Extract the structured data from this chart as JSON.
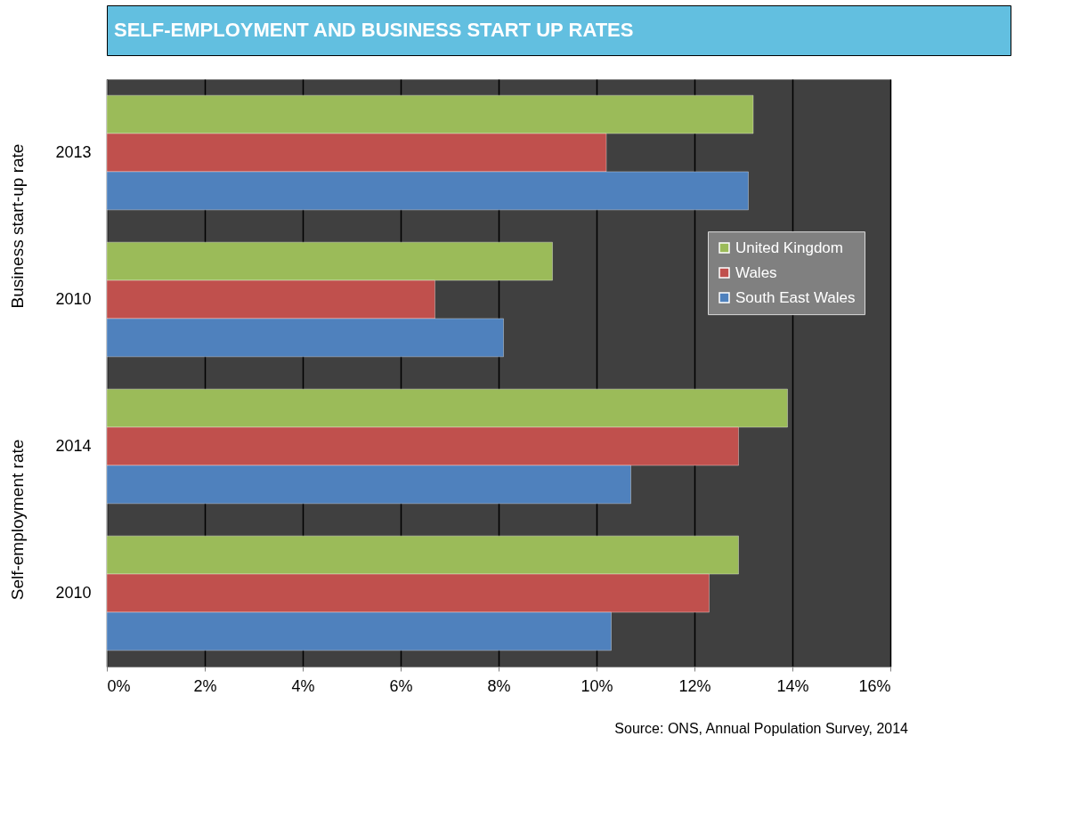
{
  "chart_data": {
    "type": "bar",
    "orientation": "horizontal",
    "title": "SELF-EMPLOYMENT AND BUSINESS START UP RATES",
    "categories": [
      "2013",
      "2010",
      "2014",
      "2010"
    ],
    "series": [
      {
        "name": "United Kingdom",
        "color": "#9bbb59",
        "values": [
          13.2,
          9.1,
          13.9,
          12.9
        ]
      },
      {
        "name": "Wales",
        "color": "#c0504d",
        "values": [
          10.2,
          6.7,
          12.9,
          12.3
        ]
      },
      {
        "name": "South East Wales",
        "color": "#4f81bd",
        "values": [
          13.1,
          8.1,
          10.7,
          10.3
        ]
      }
    ],
    "xlim": [
      0,
      16
    ],
    "xticks": [
      {
        "value": 0,
        "label": "0%"
      },
      {
        "value": 2,
        "label": "2%"
      },
      {
        "value": 4,
        "label": "4%"
      },
      {
        "value": 6,
        "label": "6%"
      },
      {
        "value": 8,
        "label": "8%"
      },
      {
        "value": 10,
        "label": "10%"
      },
      {
        "value": 12,
        "label": "12%"
      },
      {
        "value": 14,
        "label": "14%"
      },
      {
        "value": 16,
        "label": "16%"
      }
    ],
    "grid": "x",
    "legend": "right",
    "annotations": [
      "Business start-up rate",
      "Self-employment rate",
      "Source: ONS, Annual Population Survey, 2014"
    ]
  }
}
